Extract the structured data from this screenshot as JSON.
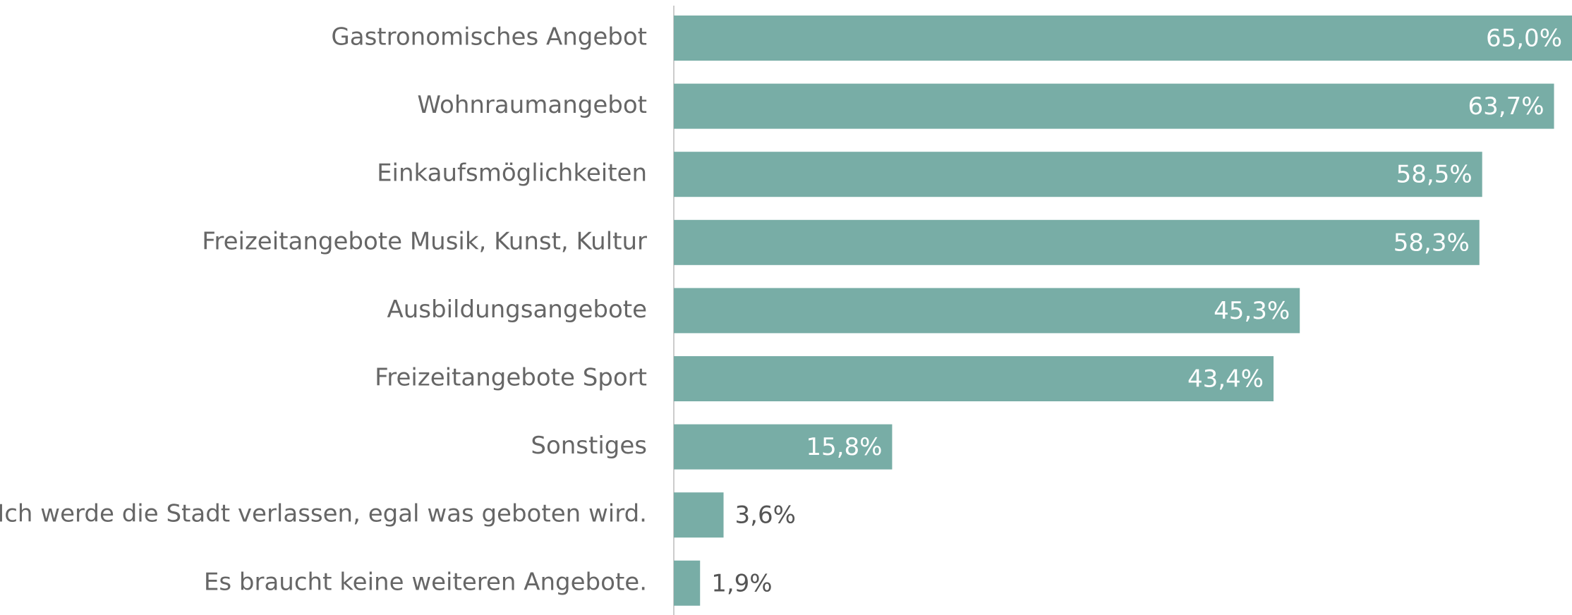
{
  "chart_data": {
    "type": "bar",
    "orientation": "horizontal",
    "categories": [
      "Gastronomisches Angebot",
      "Wohnraumangebot",
      "Einkaufsmöglichkeiten",
      "Freizeitangebote Musik, Kunst, Kultur",
      "Ausbildungsangebote",
      "Freizeitangebote Sport",
      "Sonstiges",
      "Ich werde die Stadt verlassen, egal was geboten wird.",
      "Es braucht keine weiteren Angebote."
    ],
    "values": [
      65.0,
      63.7,
      58.5,
      58.3,
      45.3,
      43.4,
      15.8,
      3.6,
      1.9
    ],
    "value_labels": [
      "65,0%",
      "63,7%",
      "58,5%",
      "58,3%",
      "45,3%",
      "43,4%",
      "15,8%",
      "3,6%",
      "1,9%"
    ],
    "color": "#78ada6"
  }
}
